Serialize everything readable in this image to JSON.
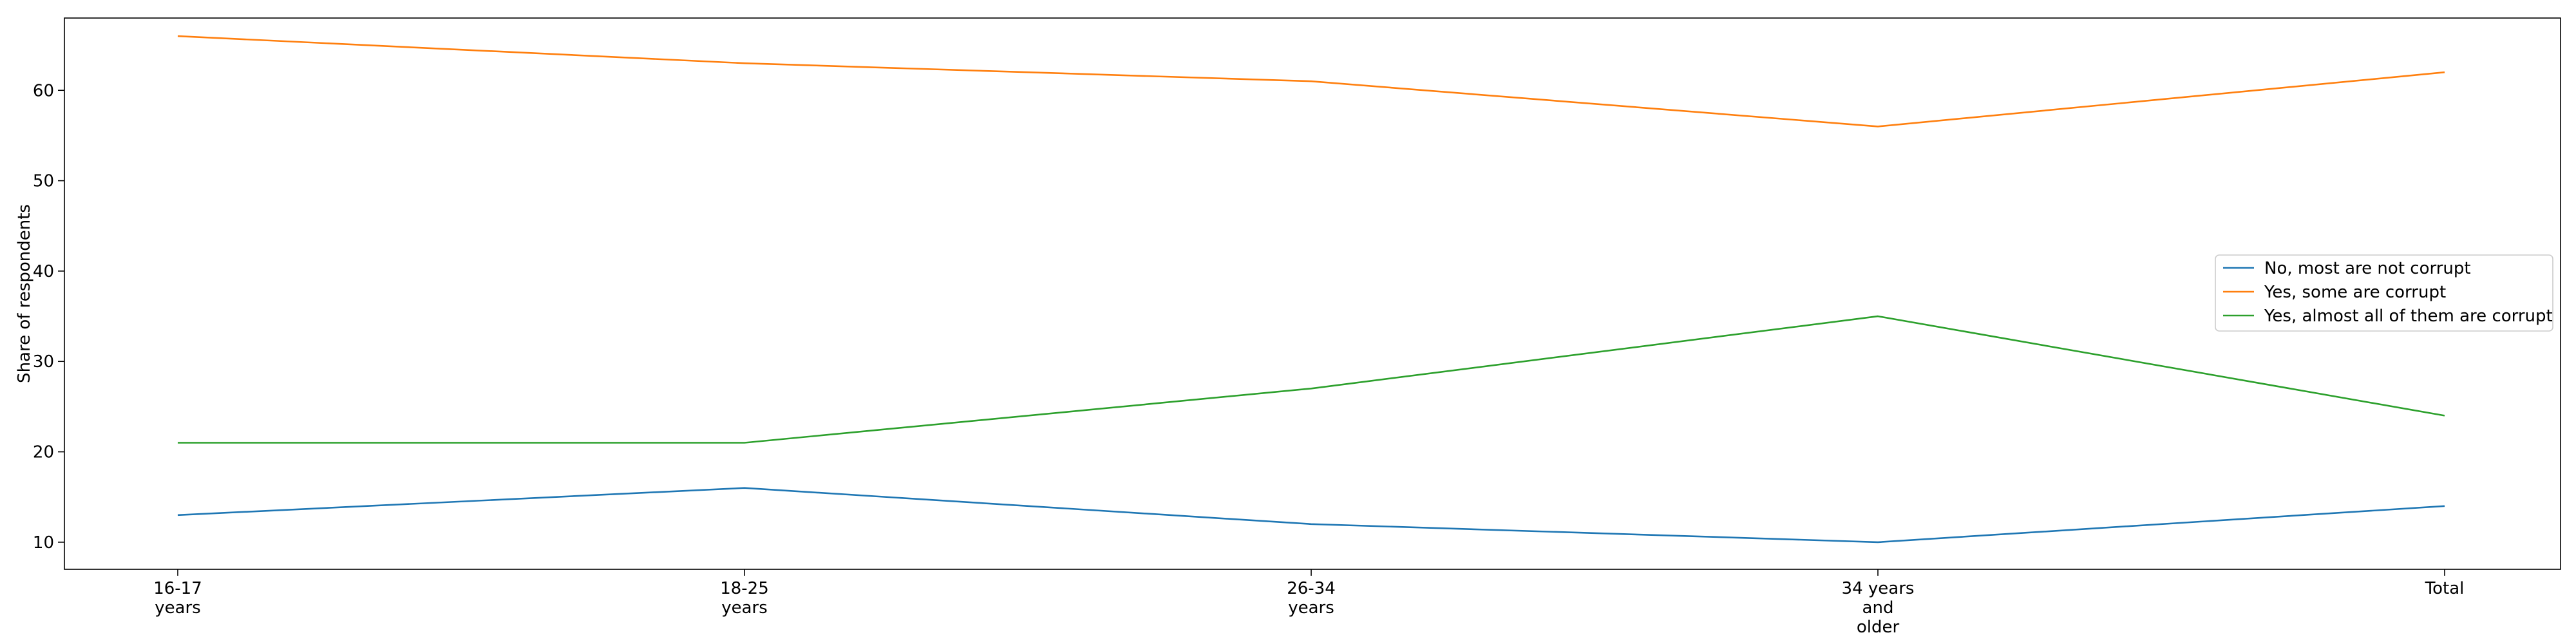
{
  "chart_data": {
    "type": "line",
    "title": "",
    "xlabel": "",
    "ylabel": "Share of respondents",
    "categories": [
      [
        "16-17",
        "years"
      ],
      [
        "18-25",
        "years"
      ],
      [
        "26-34",
        "years"
      ],
      [
        "34 years",
        "and",
        "older"
      ],
      [
        "Total"
      ]
    ],
    "ylim": [
      7,
      68
    ],
    "yticks": [
      10,
      20,
      30,
      40,
      50,
      60
    ],
    "grid": false,
    "legend_position": "center-right",
    "series": [
      {
        "name": "No, most are not corrupt",
        "color": "#1f77b4",
        "values": [
          13,
          16,
          12,
          10,
          14
        ]
      },
      {
        "name": "Yes, some are corrupt",
        "color": "#ff7f0e",
        "values": [
          66,
          63,
          61,
          56,
          62
        ]
      },
      {
        "name": "Yes, almost all of them are corrupt",
        "color": "#2ca02c",
        "values": [
          21,
          21,
          27,
          35,
          24
        ]
      }
    ]
  }
}
